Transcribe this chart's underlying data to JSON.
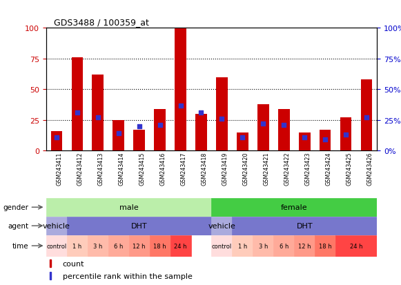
{
  "title": "GDS3488 / 100359_at",
  "samples": [
    "GSM243411",
    "GSM243412",
    "GSM243413",
    "GSM243414",
    "GSM243415",
    "GSM243416",
    "GSM243417",
    "GSM243418",
    "GSM243419",
    "GSM243420",
    "GSM243421",
    "GSM243422",
    "GSM243423",
    "GSM243424",
    "GSM243425",
    "GSM243426"
  ],
  "count_values": [
    16,
    76,
    62,
    25,
    17,
    34,
    100,
    30,
    60,
    15,
    38,
    34,
    15,
    17,
    27,
    58
  ],
  "percentile_values": [
    11,
    31,
    27,
    14,
    20,
    21,
    37,
    31,
    26,
    11,
    22,
    21,
    11,
    9,
    13,
    27
  ],
  "bar_color": "#CC0000",
  "dot_color": "#3333CC",
  "ylim": [
    0,
    100
  ],
  "yticks": [
    0,
    25,
    50,
    75,
    100
  ],
  "grid_lines": [
    25,
    50,
    75
  ],
  "gender_regions": [
    {
      "label": "male",
      "start": 0,
      "end": 8,
      "color": "#bbeeaa"
    },
    {
      "label": "female",
      "start": 8,
      "end": 16,
      "color": "#44cc44"
    }
  ],
  "agent_regions": [
    {
      "label": "vehicle",
      "start": 0,
      "end": 1,
      "color": "#aaaadd"
    },
    {
      "label": "DHT",
      "start": 1,
      "end": 8,
      "color": "#7777cc"
    },
    {
      "label": "vehicle",
      "start": 8,
      "end": 9,
      "color": "#aaaadd"
    },
    {
      "label": "DHT",
      "start": 9,
      "end": 16,
      "color": "#7777cc"
    }
  ],
  "time_labels": [
    "control",
    "1 h",
    "3 h",
    "6 h",
    "12 h",
    "18 h",
    "24 h",
    "control",
    "1 h",
    "3 h",
    "6 h",
    "12 h",
    "18 h",
    "24 h"
  ],
  "time_starts": [
    0,
    1,
    2,
    3,
    4,
    5,
    6,
    8,
    9,
    10,
    11,
    12,
    13,
    14
  ],
  "time_ends": [
    1,
    2,
    3,
    4,
    5,
    6,
    7,
    9,
    10,
    11,
    12,
    13,
    14,
    16
  ],
  "time_colors": [
    "#ffdddd",
    "#ffccbb",
    "#ffbbaa",
    "#ffaa99",
    "#ff9988",
    "#ff7766",
    "#ff4444",
    "#ffdddd",
    "#ffccbb",
    "#ffbbaa",
    "#ffaa99",
    "#ff9988",
    "#ff7766",
    "#ff4444"
  ],
  "left_label_color": "#CC0000",
  "right_label_color": "#0000CC",
  "axis_bg_color": "#ffffff",
  "xlabels_bg_color": "#cccccc",
  "row_label_font": 7.5,
  "bar_fontsize": 8
}
